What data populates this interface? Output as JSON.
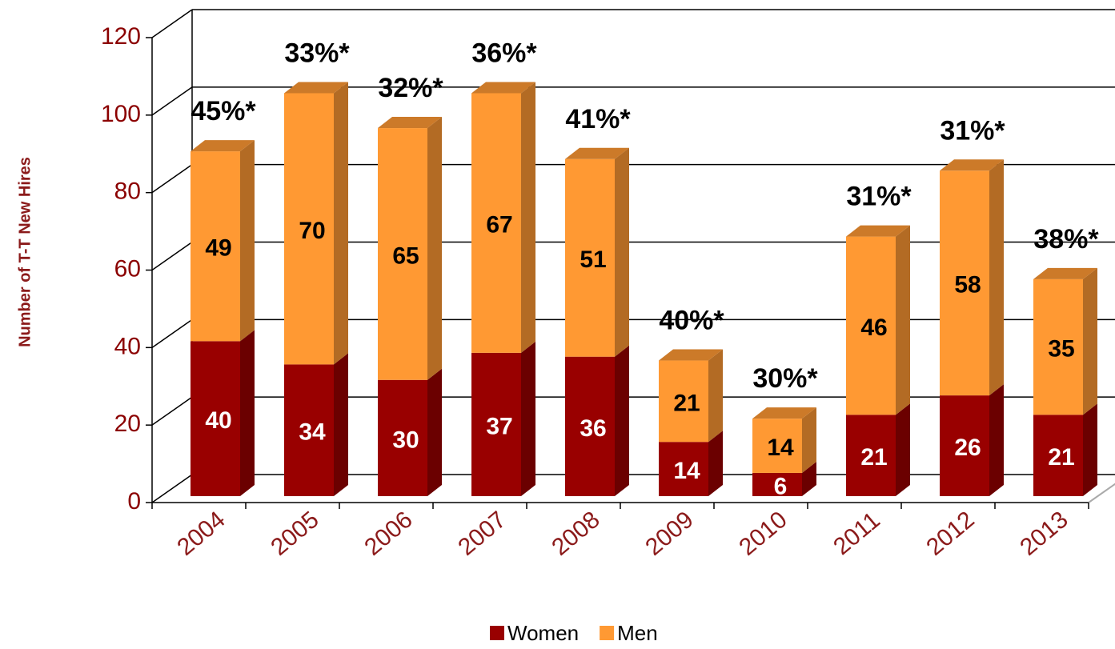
{
  "chart_data": {
    "type": "bar",
    "stacked": true,
    "y_label": "Number of T-T New Hires",
    "categories": [
      "2004",
      "2005",
      "2006",
      "2007",
      "2008",
      "2009",
      "2010",
      "2011",
      "2012",
      "2013"
    ],
    "series": [
      {
        "name": "Women",
        "color": "#990000",
        "values": [
          40,
          34,
          30,
          37,
          36,
          14,
          6,
          21,
          26,
          21
        ]
      },
      {
        "name": "Men",
        "color": "#ff9933",
        "values": [
          49,
          70,
          65,
          67,
          51,
          21,
          14,
          46,
          58,
          35
        ]
      }
    ],
    "annotations": [
      "45%*",
      "33%*",
      "32%*",
      "36%*",
      "41%*",
      "40%*",
      "30%*",
      "31%*",
      "31%*",
      "38%*"
    ],
    "ylim": [
      0,
      120
    ],
    "yticks": [
      0,
      20,
      40,
      60,
      80,
      100,
      120
    ],
    "grid": true,
    "legend": "bottom"
  }
}
